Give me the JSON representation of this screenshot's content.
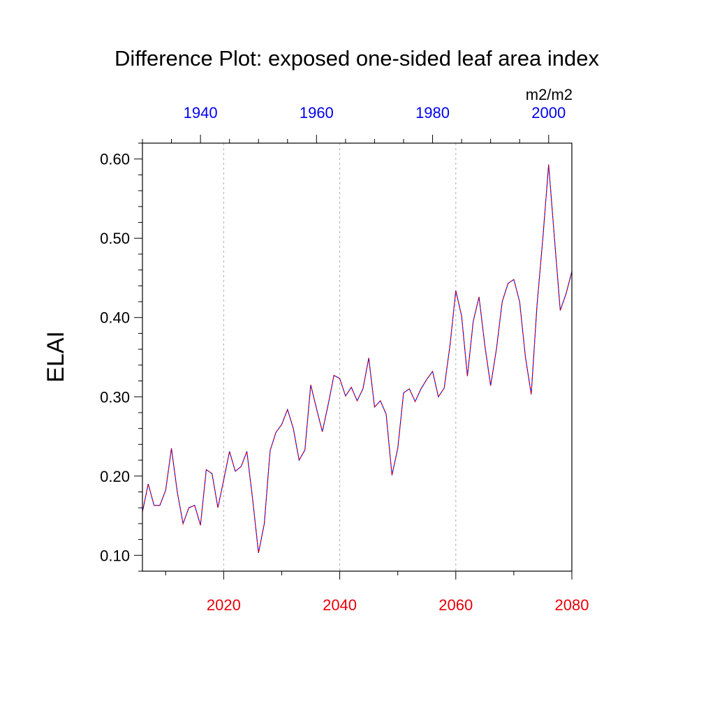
{
  "chart_data": {
    "type": "line",
    "title": "Difference Plot: exposed one-sided leaf area index",
    "units": "m2/m2",
    "ylabel": "ELAI",
    "xlabel": "",
    "ylim": [
      0.08,
      0.62
    ],
    "bottom_axis": {
      "xlim": [
        2006,
        2080
      ],
      "ticks": [
        2020,
        2040,
        2060,
        2080
      ],
      "tick_labels": [
        "2020",
        "2040",
        "2060",
        "2080"
      ],
      "color": "#e8000b"
    },
    "top_axis": {
      "xlim": [
        1930,
        2004
      ],
      "ticks": [
        1940,
        1960,
        1980,
        2000
      ],
      "tick_labels": [
        "1940",
        "1960",
        "1980",
        "2000"
      ],
      "color": "#0000ee"
    },
    "y_ticks": [
      0.1,
      0.2,
      0.3,
      0.4,
      0.5,
      0.6
    ],
    "y_tick_labels": [
      "0.10",
      "0.20",
      "0.30",
      "0.40",
      "0.50",
      "0.60"
    ],
    "grid": {
      "vertical_dashed_at": [
        2020,
        2040,
        2060
      ]
    },
    "series": [
      {
        "color_solid": "#0000ee",
        "color_dashed": "#e8000b",
        "x": [
          2006,
          2007,
          2008,
          2009,
          2010,
          2011,
          2012,
          2013,
          2014,
          2015,
          2016,
          2017,
          2018,
          2019,
          2020,
          2021,
          2022,
          2023,
          2024,
          2025,
          2026,
          2027,
          2028,
          2029,
          2030,
          2031,
          2032,
          2033,
          2034,
          2035,
          2036,
          2037,
          2038,
          2039,
          2040,
          2041,
          2042,
          2043,
          2044,
          2045,
          2046,
          2047,
          2048,
          2049,
          2050,
          2051,
          2052,
          2053,
          2054,
          2055,
          2056,
          2057,
          2058,
          2059,
          2060,
          2061,
          2062,
          2063,
          2064,
          2065,
          2066,
          2067,
          2068,
          2069,
          2070,
          2071,
          2072,
          2073,
          2074,
          2075,
          2076,
          2077,
          2078,
          2079,
          2080
        ],
        "y": [
          0.155,
          0.19,
          0.163,
          0.163,
          0.182,
          0.235,
          0.18,
          0.14,
          0.16,
          0.163,
          0.138,
          0.208,
          0.203,
          0.16,
          0.195,
          0.231,
          0.206,
          0.212,
          0.231,
          0.17,
          0.103,
          0.14,
          0.232,
          0.255,
          0.265,
          0.284,
          0.26,
          0.22,
          0.233,
          0.315,
          0.285,
          0.256,
          0.29,
          0.327,
          0.323,
          0.301,
          0.312,
          0.295,
          0.31,
          0.349,
          0.287,
          0.295,
          0.278,
          0.201,
          0.235,
          0.305,
          0.31,
          0.294,
          0.31,
          0.322,
          0.332,
          0.3,
          0.311,
          0.365,
          0.434,
          0.402,
          0.326,
          0.395,
          0.426,
          0.365,
          0.314,
          0.36,
          0.42,
          0.443,
          0.448,
          0.42,
          0.35,
          0.303,
          0.416,
          0.5,
          0.593,
          0.5,
          0.409,
          0.43,
          0.458
        ]
      }
    ]
  }
}
